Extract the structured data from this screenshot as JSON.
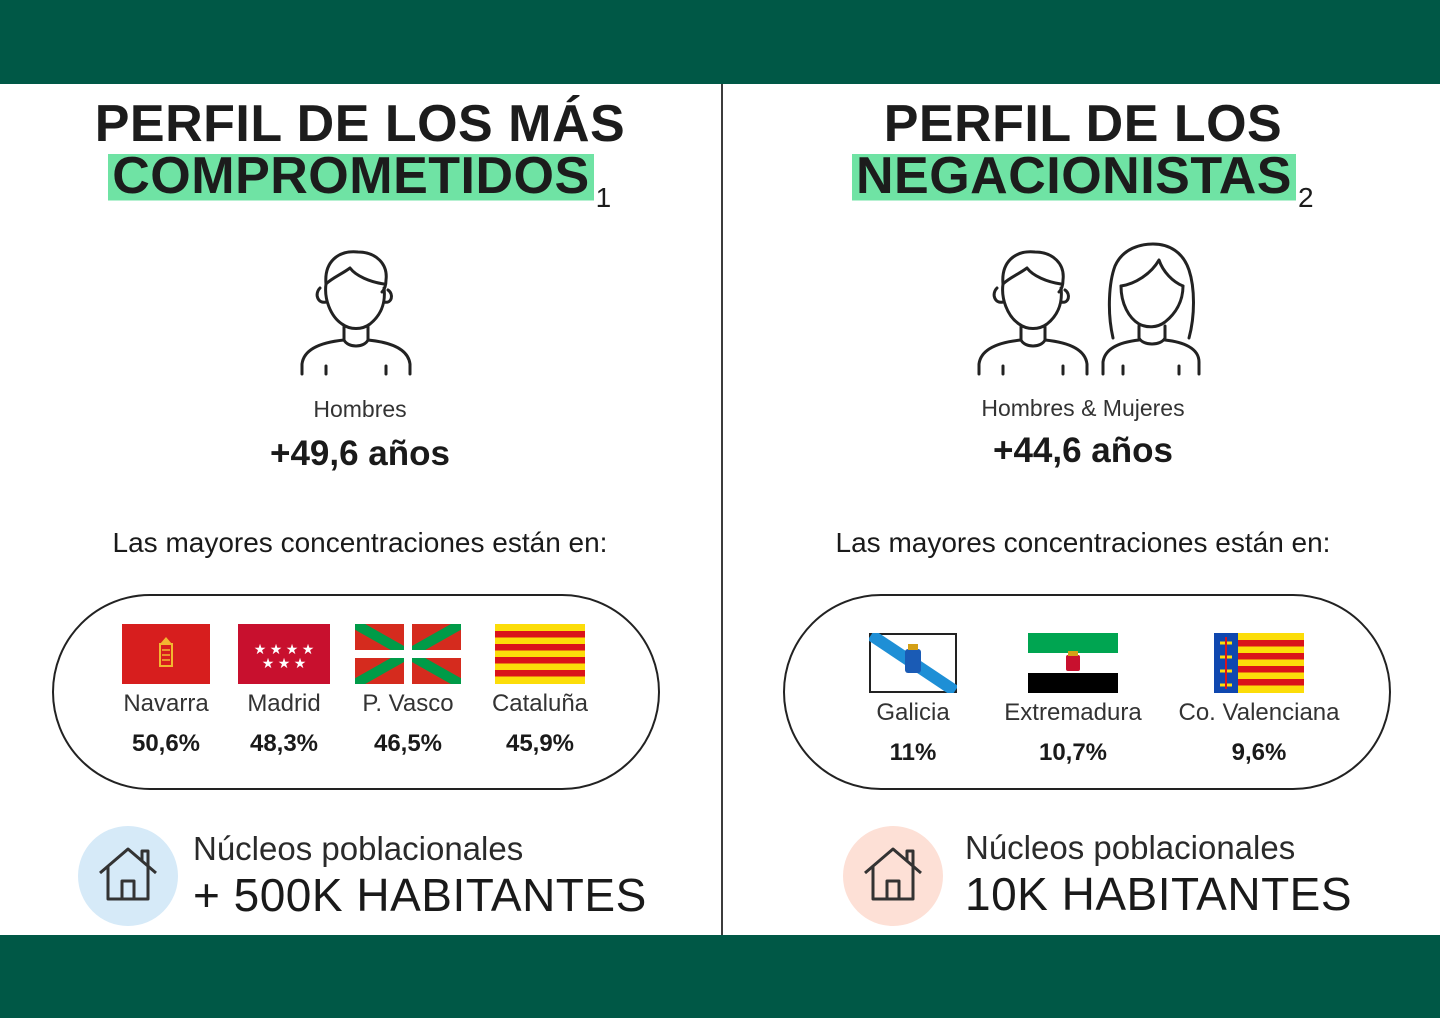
{
  "left": {
    "title_line1": "PERFIL DE LOS MÁS",
    "title_line2": "COMPROMETIDOS",
    "title_sup": "1",
    "gender": "Hombres",
    "age": "+49,6 años",
    "concentrations_label": "Las mayores concentraciones están en:",
    "regions": [
      {
        "name": "Navarra",
        "value": "50,6%"
      },
      {
        "name": "Madrid",
        "value": "48,3%"
      },
      {
        "name": "P. Vasco",
        "value": "46,5%"
      },
      {
        "name": "Cataluña",
        "value": "45,9%"
      }
    ],
    "nucleos_label": "Núcleos poblacionales",
    "habitantes": "+ 500K  HABITANTES",
    "circle_color": "#d6eaf8"
  },
  "right": {
    "title_line1": "PERFIL DE LOS",
    "title_line2": "NEGACIONISTAS",
    "title_sup": "2",
    "gender": "Hombres & Mujeres",
    "age": "+44,6 años",
    "concentrations_label": "Las mayores concentraciones están en:",
    "regions": [
      {
        "name": "Galicia",
        "value": "11%"
      },
      {
        "name": "Extremadura",
        "value": "10,7%"
      },
      {
        "name": "Co. Valenciana",
        "value": "9,6%"
      }
    ],
    "nucleos_label": "Núcleos poblacionales",
    "habitantes": "10K  HABITANTES",
    "circle_color": "#fde0d6"
  },
  "colors": {
    "band": "#005846",
    "highlight": "#6fe3a4"
  },
  "icons": [
    "man-icon",
    "woman-icon",
    "house-icon",
    "navarra-flag-icon",
    "madrid-flag-icon",
    "basque-flag-icon",
    "catalonia-flag-icon",
    "galicia-flag-icon",
    "extremadura-flag-icon",
    "valencia-flag-icon"
  ]
}
